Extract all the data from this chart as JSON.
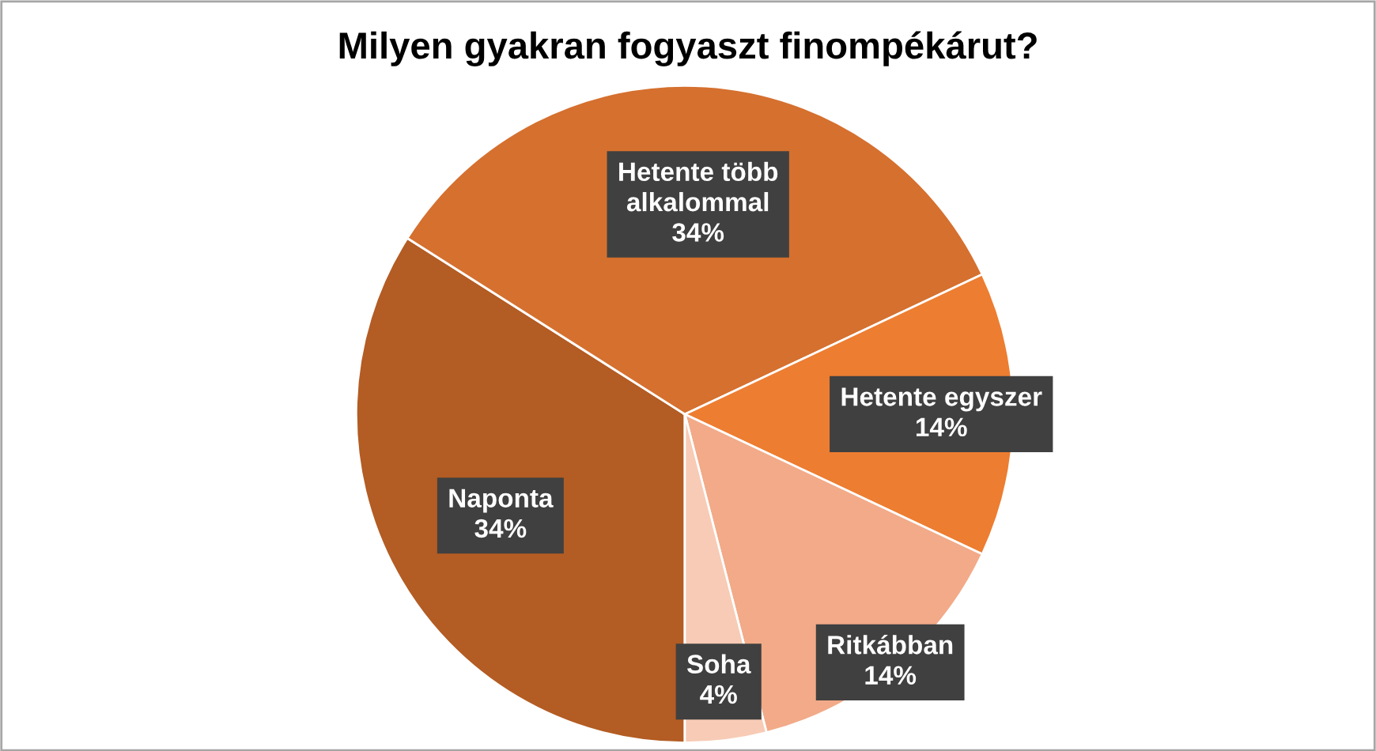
{
  "chart_data": {
    "type": "pie",
    "title": "Milyen gyakran fogyaszt finompékárut?",
    "categories": [
      "Naponta",
      "Hetente több alkalommal",
      "Hetente egyszer",
      "Ritkábban",
      "Soha"
    ],
    "values": [
      34,
      34,
      14,
      14,
      4
    ],
    "value_labels": [
      "34%",
      "34%",
      "14%",
      "14%",
      "4%"
    ],
    "colors": [
      "#b35c23",
      "#d5702f",
      "#ed7d31",
      "#f2aa88",
      "#f7cbb5"
    ],
    "legend": false
  }
}
